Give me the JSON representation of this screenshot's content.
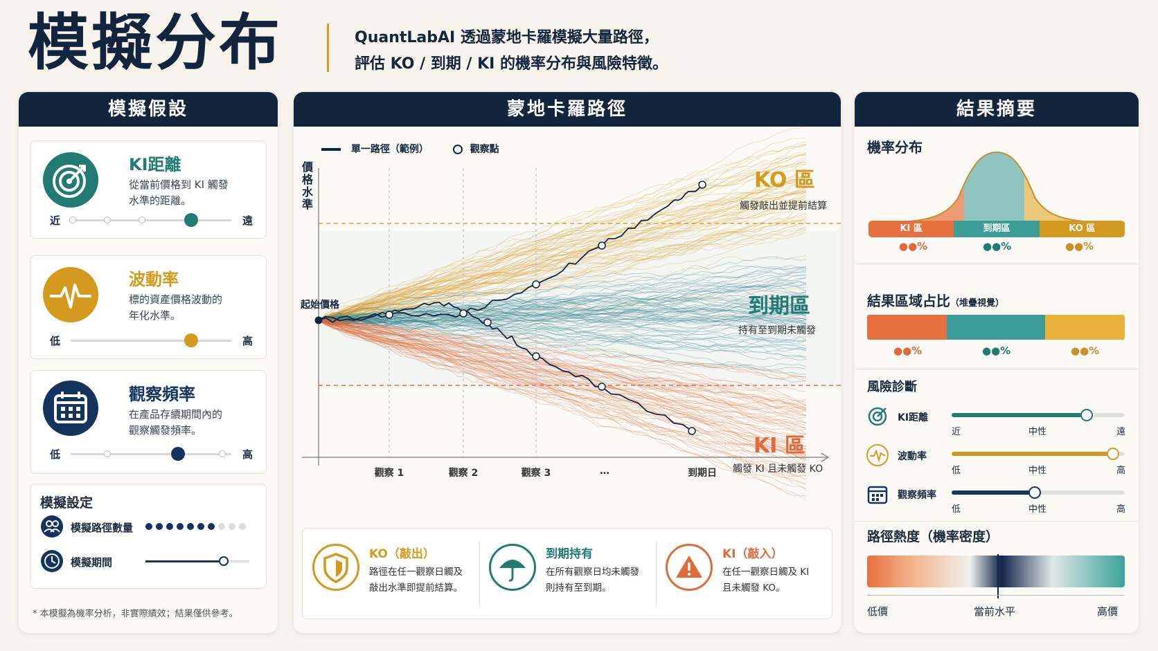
{
  "header": {
    "title": "模擬分布",
    "desc_line1": "QuantLabAI 透過蒙地卡羅模擬大量路徑，",
    "desc_line2": "評估 KO / 到期 / KI 的機率分布與風險特徵。"
  },
  "left": {
    "title": "模擬假設",
    "cards": [
      {
        "title": "KI距離",
        "desc1": "從當前價格到 KI 觸發",
        "desc2": "水準的距離。",
        "low": "近",
        "high": "遠",
        "level": 0.75,
        "color": "#217b73",
        "icon": "target-icon"
      },
      {
        "title": "波動率",
        "desc1": "標的資產價格波動的",
        "desc2": "年化水準。",
        "low": "低",
        "high": "高",
        "level": 0.75,
        "color": "#d49a1e",
        "icon": "pulse-icon"
      },
      {
        "title": "觀察頻率",
        "desc1": "在產品存續期間內的",
        "desc2": "觀察觸發頻率。",
        "low": "低",
        "high": "高",
        "level": 0.67,
        "color": "#14345f",
        "icon": "calendar-icon"
      }
    ],
    "settings": {
      "title": "模擬設定",
      "paths_label": "模擬路徑數量",
      "period_label": "模擬期間",
      "paths_level": 0.7,
      "period_level": 0.75
    },
    "footnote": "* 本模擬為機率分析，非實際績效；結果僅供參考。"
  },
  "center": {
    "title": "蒙地卡羅路徑",
    "legend_path": "單一路徑（範例）",
    "legend_obs": "觀察點",
    "y_axis": "價格水準",
    "start_label": "起始價格",
    "ko_title": "KO 區",
    "ko_sub": "觸發敲出並提前結算",
    "mid_title": "到期區",
    "mid_sub": "持有至到期未觸發",
    "ki_title": "KI 區",
    "ki_sub": "觸發 KI 且未觸發 KO",
    "x_ticks": [
      "觀察 1",
      "觀察 2",
      "觀察 3",
      "…",
      "到期日"
    ],
    "outcomes": [
      {
        "title": "KO（敲出）",
        "desc1": "路徑在任一觀察日觸及",
        "desc2": "敲出水準即提前結算。",
        "color": "#d49a1e",
        "icon": "shield-icon"
      },
      {
        "title": "到期持有",
        "desc1": "在所有觀察日均未觸發",
        "desc2": "則持有至到期。",
        "color": "#217b73",
        "icon": "umbrella-icon"
      },
      {
        "title": "KI（敲入）",
        "desc1": "在任一觀察日觸及 KI",
        "desc2": "且未觸發 KO。",
        "color": "#e06a3a",
        "icon": "warning-icon"
      }
    ],
    "colors": {
      "ko": "#d9a032",
      "mid": "#2f7d8a",
      "ki": "#e0703f",
      "path": "#13253d"
    }
  },
  "right": {
    "title": "結果摘要",
    "dist_title": "機率分布",
    "dist_labels": [
      "KI 區",
      "到期區",
      "KO 區"
    ],
    "dist_pcts": [
      "●●%",
      "●●%",
      "●●%"
    ],
    "stack_title": "結果區域占比",
    "stack_note": "（堆疊視覺）",
    "stack_pcts": [
      "●●%",
      "●●%",
      "●●%"
    ],
    "risk_title": "風險診斷",
    "risks": [
      {
        "label": "KI距離",
        "low": "近",
        "mid": "中性",
        "high": "遠",
        "level": 0.78,
        "color": "#217b73",
        "icon": "target-icon"
      },
      {
        "label": "波動率",
        "low": "低",
        "mid": "中性",
        "high": "高",
        "level": 0.93,
        "color": "#d49a1e",
        "icon": "pulse-icon"
      },
      {
        "label": "觀察頻率",
        "low": "低",
        "mid": "中性",
        "high": "高",
        "level": 0.48,
        "color": "#14345f",
        "icon": "calendar-icon"
      }
    ],
    "heat_title": "路徑熱度（機率密度）",
    "heat_low": "低價",
    "heat_mid": "當前水平",
    "heat_high": "高價"
  }
}
